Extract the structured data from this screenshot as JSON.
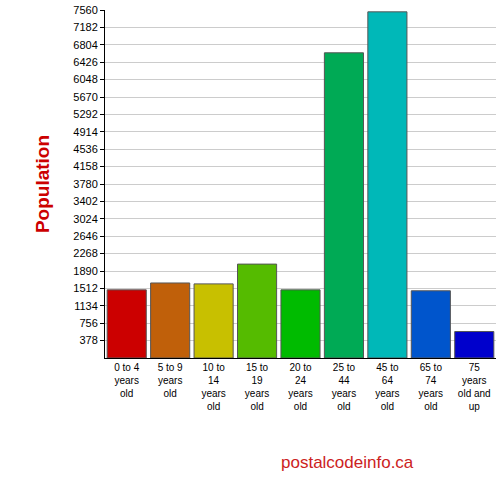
{
  "chart_data": {
    "type": "bar",
    "categories": [
      "0 to 4 years old",
      "5 to 9 years old",
      "10 to 14 years old",
      "15 to 19 years old",
      "20 to 24 years old",
      "25 to 44 years old",
      "45 to 64 years old",
      "65 to 74 years old",
      "75 years old and up"
    ],
    "values": [
      1480,
      1630,
      1610,
      2040,
      1480,
      6630,
      7520,
      1460,
      575
    ],
    "colors": [
      "#cc0000",
      "#c0600a",
      "#c8c000",
      "#55bb00",
      "#00bb00",
      "#00aa55",
      "#00b8b8",
      "#0055cc",
      "#0000cc"
    ],
    "ylabel": "Population",
    "ylim": [
      0,
      7560
    ],
    "yticks": [
      378,
      756,
      1134,
      1512,
      1890,
      2268,
      2646,
      3024,
      3402,
      3780,
      4158,
      4536,
      4914,
      5292,
      5670,
      6048,
      6426,
      6804,
      7182,
      7560
    ],
    "grid": true,
    "annotations": [
      {
        "text": "postalcodeinfo.ca"
      }
    ]
  }
}
